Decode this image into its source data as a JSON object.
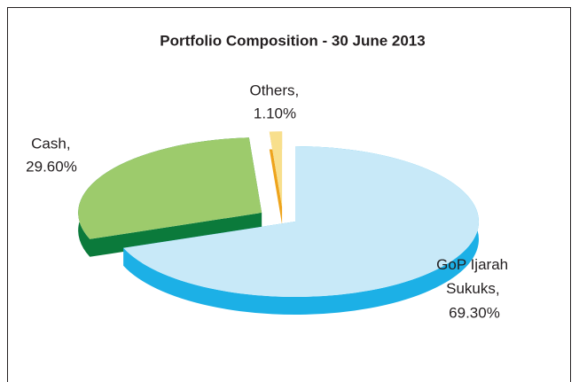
{
  "chart_data": {
    "type": "pie3d",
    "title": "Portfolio Composition - 30 June 2013",
    "categories": [
      "GoP Ijarah Sukuks",
      "Cash",
      "Others"
    ],
    "values": [
      69.3,
      29.6,
      1.1
    ],
    "value_labels": [
      "69.30%",
      "29.60%",
      "1.10%"
    ],
    "label_separator": ",",
    "colors": [
      "#c8e9f8",
      "#9dcb6c",
      "#f8df8c"
    ],
    "side_colors": [
      "#1cb0e6",
      "#0b7a3b",
      "#eea41c"
    ]
  }
}
